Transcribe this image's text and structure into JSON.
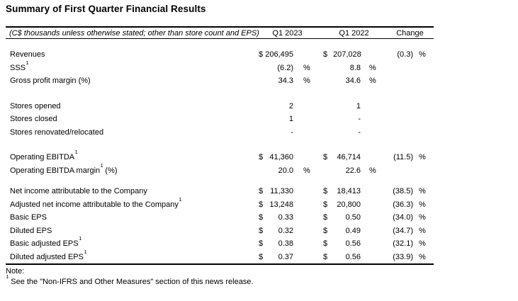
{
  "page": {
    "title": "Summary of First Quarter Financial Results",
    "note_label": "Note:",
    "footnote": {
      "marker": "1",
      "text": "See the \"Non-IFRS and Other Measures\" section of this news release."
    }
  },
  "table": {
    "caption": "(C$ thousands unless otherwise stated; other than store count and EPS)",
    "col_headers": [
      "Q1 2023",
      "Q1 2022",
      "Change"
    ],
    "sections": [
      {
        "rows": [
          {
            "label": "Revenues",
            "sup": "",
            "suffix": "",
            "c1": {
              "sign": "$",
              "value": "206,495",
              "pct": ""
            },
            "c2": {
              "sign": "$",
              "value": "207,028",
              "pct": ""
            },
            "chg": {
              "value": "(0.3)",
              "pct": "%"
            }
          },
          {
            "label": "SSS",
            "sup": "1",
            "suffix": "",
            "c1": {
              "sign": "",
              "value": "(6.2)",
              "pct": "%"
            },
            "c2": {
              "sign": "",
              "value": "8.8",
              "pct": "%"
            },
            "chg": {
              "value": "",
              "pct": ""
            }
          },
          {
            "label": "Gross profit margin (%)",
            "sup": "",
            "suffix": "",
            "c1": {
              "sign": "",
              "value": "34.3",
              "pct": "%"
            },
            "c2": {
              "sign": "",
              "value": "34.6",
              "pct": "%"
            },
            "chg": {
              "value": "",
              "pct": ""
            }
          }
        ]
      },
      {
        "rows": [
          {
            "label": "Stores opened",
            "sup": "",
            "suffix": "",
            "c1": {
              "sign": "",
              "value": "2",
              "pct": ""
            },
            "c2": {
              "sign": "",
              "value": "1",
              "pct": ""
            },
            "chg": {
              "value": "",
              "pct": ""
            }
          },
          {
            "label": "Stores closed",
            "sup": "",
            "suffix": "",
            "c1": {
              "sign": "",
              "value": "1",
              "pct": ""
            },
            "c2": {
              "sign": "",
              "value": "-",
              "pct": ""
            },
            "chg": {
              "value": "",
              "pct": ""
            }
          },
          {
            "label": "Stores renovated/relocated",
            "sup": "",
            "suffix": "",
            "c1": {
              "sign": "",
              "value": "-",
              "pct": ""
            },
            "c2": {
              "sign": "",
              "value": "-",
              "pct": ""
            },
            "chg": {
              "value": "",
              "pct": ""
            }
          }
        ]
      },
      {
        "rows": [
          {
            "label": "Operating EBITDA",
            "sup": "1",
            "suffix": "",
            "c1": {
              "sign": "$",
              "value": "41,360",
              "pct": ""
            },
            "c2": {
              "sign": "$",
              "value": "46,714",
              "pct": ""
            },
            "chg": {
              "value": "(11.5)",
              "pct": "%"
            }
          },
          {
            "label": "Operating EBITDA margin",
            "sup": "1",
            "suffix": " (%)",
            "c1": {
              "sign": "",
              "value": "20.0",
              "pct": "%"
            },
            "c2": {
              "sign": "",
              "value": "22.6",
              "pct": "%"
            },
            "chg": {
              "value": "",
              "pct": ""
            }
          }
        ]
      },
      {
        "rows": [
          {
            "label": "Net income attributable to the Company",
            "sup": "",
            "suffix": "",
            "c1": {
              "sign": "$",
              "value": "11,330",
              "pct": ""
            },
            "c2": {
              "sign": "$",
              "value": "18,413",
              "pct": ""
            },
            "chg": {
              "value": "(38.5)",
              "pct": "%"
            }
          },
          {
            "label": "Adjusted net income attributable to the Company",
            "sup": "1",
            "suffix": "",
            "c1": {
              "sign": "$",
              "value": "13,248",
              "pct": ""
            },
            "c2": {
              "sign": "$",
              "value": "20,800",
              "pct": ""
            },
            "chg": {
              "value": "(36.3)",
              "pct": "%"
            }
          },
          {
            "label": "Basic EPS",
            "sup": "",
            "suffix": "",
            "c1": {
              "sign": "$",
              "value": "0.33",
              "pct": ""
            },
            "c2": {
              "sign": "$",
              "value": "0.50",
              "pct": ""
            },
            "chg": {
              "value": "(34.0)",
              "pct": "%"
            }
          },
          {
            "label": "Diluted EPS",
            "sup": "",
            "suffix": "",
            "c1": {
              "sign": "$",
              "value": "0.32",
              "pct": ""
            },
            "c2": {
              "sign": "$",
              "value": "0.49",
              "pct": ""
            },
            "chg": {
              "value": "(34.7)",
              "pct": "%"
            }
          },
          {
            "label": "Basic adjusted EPS",
            "sup": "1",
            "suffix": "",
            "c1": {
              "sign": "$",
              "value": "0.38",
              "pct": ""
            },
            "c2": {
              "sign": "$",
              "value": "0.56",
              "pct": ""
            },
            "chg": {
              "value": "(32.1)",
              "pct": "%"
            }
          },
          {
            "label": "Diluted adjusted EPS",
            "sup": "1",
            "suffix": "",
            "c1": {
              "sign": "$",
              "value": "0.37",
              "pct": ""
            },
            "c2": {
              "sign": "$",
              "value": "0.56",
              "pct": ""
            },
            "chg": {
              "value": "(33.9)",
              "pct": "%"
            }
          }
        ]
      }
    ]
  }
}
